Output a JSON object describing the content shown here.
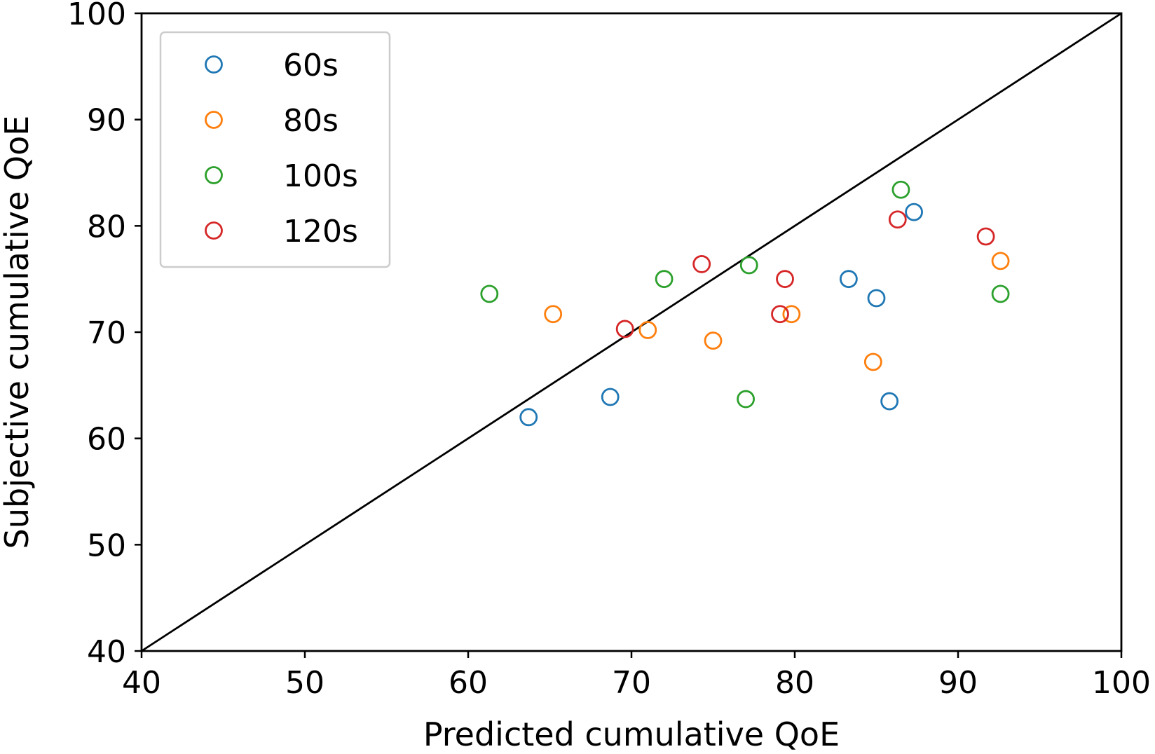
{
  "chart_data": {
    "type": "scatter",
    "title": "",
    "xlabel": "Predicted cumulative QoE",
    "ylabel": "Subjective cumulative QoE",
    "xlim": [
      40,
      100
    ],
    "ylim": [
      40,
      100
    ],
    "xticks": [
      40,
      50,
      60,
      70,
      80,
      90,
      100
    ],
    "yticks": [
      40,
      50,
      60,
      70,
      80,
      90,
      100
    ],
    "grid": false,
    "legend_position": "top-left",
    "reference_line": {
      "from": [
        40,
        40
      ],
      "to": [
        100,
        100
      ],
      "color": "#000000"
    },
    "series": [
      {
        "name": "60s",
        "color": "#1f77b4",
        "points": [
          [
            63.7,
            62.0
          ],
          [
            68.7,
            63.9
          ],
          [
            83.3,
            75.0
          ],
          [
            85.0,
            73.2
          ],
          [
            85.8,
            63.5
          ],
          [
            87.3,
            81.3
          ]
        ]
      },
      {
        "name": "80s",
        "color": "#ff7f0e",
        "points": [
          [
            65.2,
            71.7
          ],
          [
            71.0,
            70.2
          ],
          [
            75.0,
            69.2
          ],
          [
            79.8,
            71.7
          ],
          [
            84.8,
            67.2
          ],
          [
            92.6,
            76.7
          ]
        ]
      },
      {
        "name": "100s",
        "color": "#2ca02c",
        "points": [
          [
            61.3,
            73.6
          ],
          [
            72.0,
            75.0
          ],
          [
            77.0,
            63.7
          ],
          [
            77.2,
            76.3
          ],
          [
            86.5,
            83.4
          ],
          [
            92.6,
            73.6
          ]
        ]
      },
      {
        "name": "120s",
        "color": "#d62728",
        "points": [
          [
            69.6,
            70.3
          ],
          [
            74.3,
            76.4
          ],
          [
            79.1,
            71.7
          ],
          [
            79.4,
            75.0
          ],
          [
            86.3,
            80.6
          ],
          [
            91.7,
            79.0
          ]
        ]
      }
    ]
  }
}
